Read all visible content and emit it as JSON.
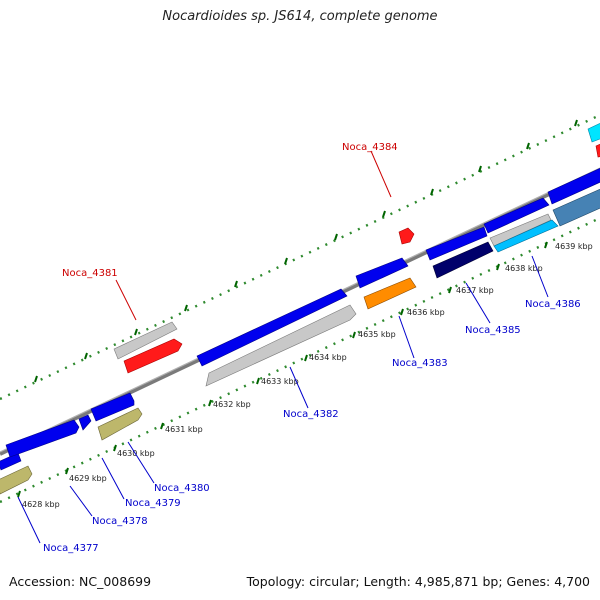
{
  "title": "Nocardioides sp. JS614, complete genome",
  "footer": {
    "accession": "Accession: NC_008699",
    "summary": "Topology: circular; Length: 4,985,871 bp; Genes: 4,700"
  },
  "colors": {
    "forward_gene": "#0000ee",
    "reverse_gene": "#c8c8c8",
    "highlight_gene": "#ff0000",
    "orange_gene": "#ff8c00",
    "khaki_gene": "#bdb76b",
    "navy_gene": "#000080",
    "cyan_gene": "#00bfff",
    "steel_gene": "#4682b4",
    "backbone": "#808080",
    "tick": "#006400",
    "label_blue": "#0000cc",
    "label_red": "#cc0000"
  },
  "axis": {
    "tick_labels": [
      "4628 kbp",
      "4629 kbp",
      "4630 kbp",
      "4631 kbp",
      "4632 kbp",
      "4633 kbp",
      "4634 kbp",
      "4635 kbp",
      "4636 kbp",
      "4637 kbp",
      "4638 kbp",
      "4639 kbp"
    ]
  },
  "genes": [
    {
      "label": "Noca_4377",
      "color": "blue"
    },
    {
      "label": "Noca_4378",
      "color": "blue"
    },
    {
      "label": "Noca_4379",
      "color": "blue"
    },
    {
      "label": "Noca_4380",
      "color": "blue"
    },
    {
      "label": "Noca_4381",
      "color": "red"
    },
    {
      "label": "Noca_4382",
      "color": "blue"
    },
    {
      "label": "Noca_4383",
      "color": "blue"
    },
    {
      "label": "Noca_4384",
      "color": "red"
    },
    {
      "label": "Noca_4385",
      "color": "blue"
    },
    {
      "label": "Noca_4386",
      "color": "blue"
    }
  ]
}
